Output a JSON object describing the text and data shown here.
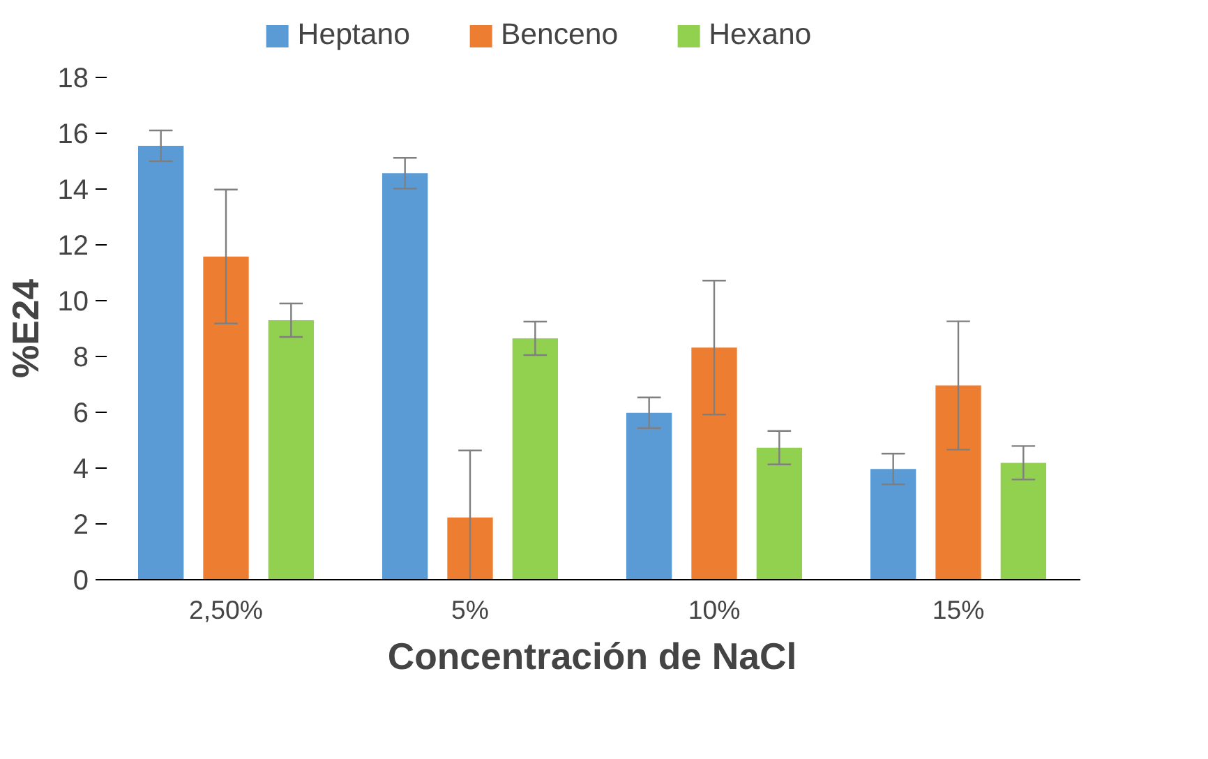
{
  "chart_data": {
    "type": "bar",
    "xlabel": "Concentración de NaCl",
    "ylabel": "%E24",
    "categories": [
      "2,50%",
      "5%",
      "10%",
      "15%"
    ],
    "series": [
      {
        "name": "Heptano",
        "color": "#5b9bd5",
        "values": [
          15.55,
          14.57,
          5.98,
          3.97
        ],
        "errors": [
          0.55,
          0.55,
          0.55,
          0.55
        ]
      },
      {
        "name": "Benceno",
        "color": "#ed7d31",
        "values": [
          11.58,
          2.23,
          8.32,
          6.96
        ],
        "errors": [
          2.4,
          2.4,
          2.4,
          2.3
        ]
      },
      {
        "name": "Hexano",
        "color": "#92d050",
        "values": [
          9.3,
          8.65,
          4.73,
          4.19
        ],
        "errors": [
          0.6,
          0.6,
          0.6,
          0.6
        ]
      }
    ],
    "ylim": [
      0,
      18
    ],
    "yticks": [
      0,
      2,
      4,
      6,
      8,
      10,
      12,
      14,
      16,
      18
    ],
    "grid": false,
    "legend": "top"
  }
}
